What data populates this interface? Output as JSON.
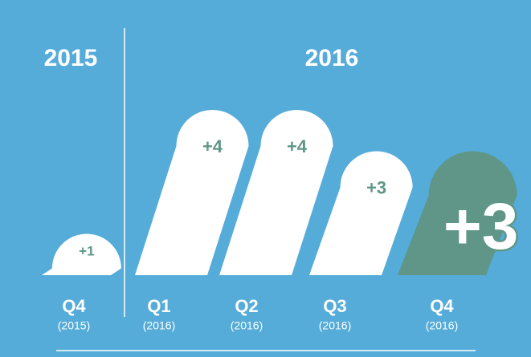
{
  "chart_data": {
    "type": "bar",
    "groups": [
      "2015",
      "2016"
    ],
    "categories": [
      "Q4",
      "Q1",
      "Q2",
      "Q3",
      "Q4"
    ],
    "subcategories": [
      "(2015)",
      "(2016)",
      "(2016)",
      "(2016)",
      "(2016)"
    ],
    "values": [
      1,
      4,
      4,
      3,
      3
    ],
    "value_labels": [
      "+1",
      "+4",
      "+4",
      "+3",
      "+3"
    ],
    "colors": [
      "#ffffff",
      "#ffffff",
      "#ffffff",
      "#ffffff",
      "#5f9688"
    ],
    "label_color": "#5f9688",
    "background": "#55acd9"
  }
}
